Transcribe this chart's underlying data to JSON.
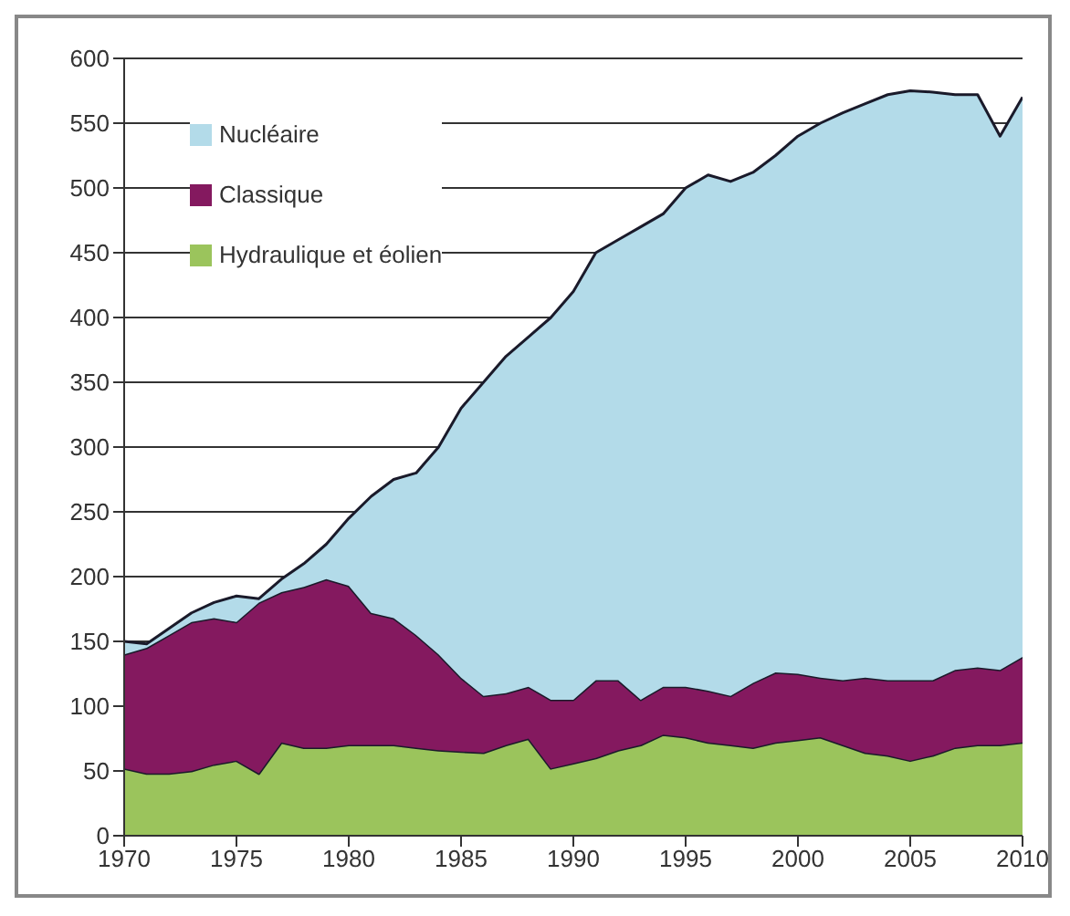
{
  "chart_data": {
    "type": "area",
    "stacked": true,
    "x": [
      1970,
      1971,
      1972,
      1973,
      1974,
      1975,
      1976,
      1977,
      1978,
      1979,
      1980,
      1981,
      1982,
      1983,
      1984,
      1985,
      1986,
      1987,
      1988,
      1989,
      1990,
      1991,
      1992,
      1993,
      1994,
      1995,
      1996,
      1997,
      1998,
      1999,
      2000,
      2001,
      2002,
      2003,
      2004,
      2005,
      2006,
      2007,
      2008,
      2009,
      2010
    ],
    "series": [
      {
        "name": "Hydraulique et éolien",
        "color": "#9bc45c",
        "values": [
          52,
          48,
          48,
          50,
          55,
          58,
          48,
          72,
          68,
          68,
          70,
          70,
          70,
          68,
          66,
          65,
          64,
          70,
          75,
          52,
          56,
          60,
          66,
          70,
          78,
          76,
          72,
          70,
          68,
          72,
          74,
          76,
          70,
          64,
          62,
          58,
          62,
          68,
          70,
          70,
          72
        ]
      },
      {
        "name": "Classique",
        "color": "#84195f",
        "values": [
          88,
          97,
          107,
          115,
          113,
          107,
          132,
          116,
          124,
          130,
          123,
          102,
          98,
          87,
          74,
          57,
          44,
          40,
          40,
          53,
          49,
          60,
          54,
          35,
          37,
          39,
          40,
          38,
          50,
          54,
          51,
          46,
          50,
          58,
          58,
          62,
          58,
          60,
          60,
          58,
          66
        ]
      },
      {
        "name": "Nucléaire",
        "color": "#b3dbe9",
        "values": [
          10,
          3,
          5,
          7,
          12,
          20,
          3,
          10,
          18,
          27,
          52,
          90,
          107,
          125,
          160,
          208,
          242,
          260,
          270,
          295,
          315,
          330,
          340,
          365,
          365,
          385,
          398,
          397,
          394,
          399,
          415,
          428,
          438,
          443,
          452,
          455,
          454,
          444,
          442,
          412,
          432
        ]
      }
    ],
    "xlim": [
      1970,
      2010
    ],
    "xticks": [
      1970,
      1975,
      1980,
      1985,
      1990,
      1995,
      2000,
      2005,
      2010
    ],
    "ylim": [
      0,
      600
    ],
    "yticks": [
      0,
      50,
      100,
      150,
      200,
      250,
      300,
      350,
      400,
      450,
      500,
      550,
      600
    ],
    "grid": "y",
    "legend": "top left"
  }
}
